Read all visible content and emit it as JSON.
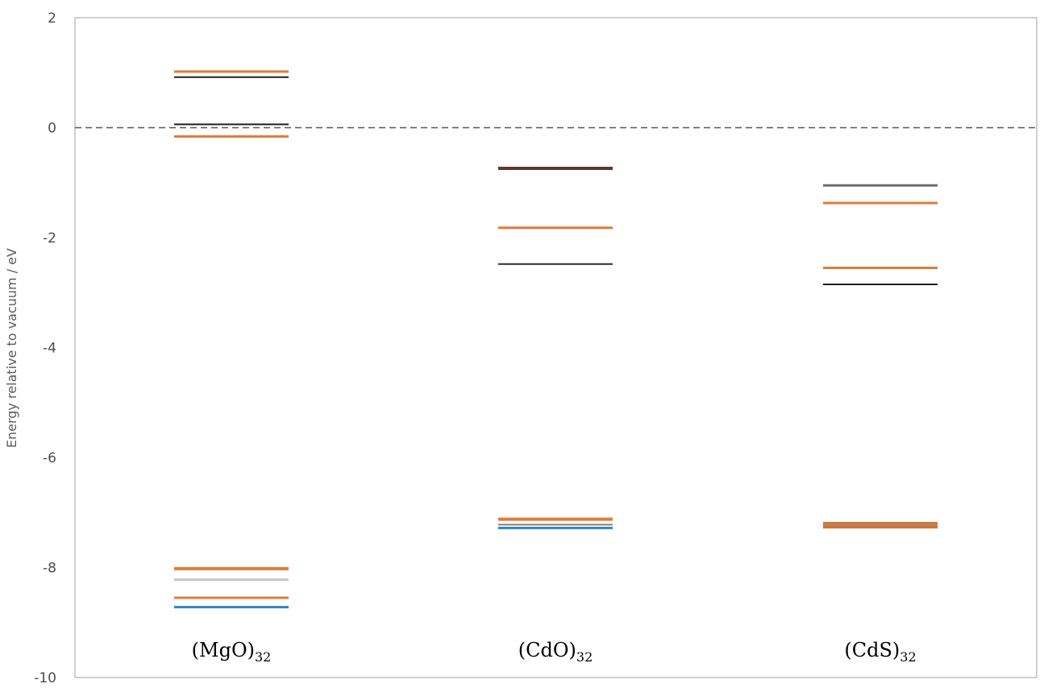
{
  "chart_data": {
    "type": "level-diagram",
    "ylabel": "Energy relative to vacuum / eV",
    "ylim": [
      -10,
      2
    ],
    "yticks": [
      2,
      0,
      -2,
      -4,
      -6,
      -8,
      -10
    ],
    "reference_line": {
      "y": 0,
      "style": "dashed"
    },
    "groups": [
      {
        "label_main": "(MgO)",
        "label_sub": "32",
        "levels": [
          {
            "y": 1.02,
            "color": "#E07B39",
            "weight": 3
          },
          {
            "y": 0.92,
            "color": "#1f1f1f",
            "weight": 2
          },
          {
            "y": 0.06,
            "color": "#1f1f1f",
            "weight": 2
          },
          {
            "y": -0.16,
            "color": "#E07B39",
            "weight": 3
          },
          {
            "y": -8.02,
            "color": "#E07B39",
            "weight": 4
          },
          {
            "y": -8.22,
            "color": "#c8c8c8",
            "weight": 3
          },
          {
            "y": -8.55,
            "color": "#E07B39",
            "weight": 3
          },
          {
            "y": -8.72,
            "color": "#2E86C1",
            "weight": 3
          }
        ]
      },
      {
        "label_main": "(CdO)",
        "label_sub": "32",
        "levels": [
          {
            "y": -0.74,
            "color": "#5a3a2a",
            "weight": 4
          },
          {
            "y": -1.82,
            "color": "#E07B39",
            "weight": 3
          },
          {
            "y": -2.48,
            "color": "#2b2b2b",
            "weight": 2
          },
          {
            "y": -7.12,
            "color": "#E07B39",
            "weight": 4
          },
          {
            "y": -7.22,
            "color": "#9a7a6a",
            "weight": 2
          },
          {
            "y": -7.28,
            "color": "#2E86C1",
            "weight": 3
          }
        ]
      },
      {
        "label_main": "(CdS)",
        "label_sub": "32",
        "levels": [
          {
            "y": -1.05,
            "color": "#6b6b6b",
            "weight": 3
          },
          {
            "y": -1.37,
            "color": "#E07B39",
            "weight": 3
          },
          {
            "y": -2.55,
            "color": "#E07B39",
            "weight": 3
          },
          {
            "y": -2.85,
            "color": "#1f1f1f",
            "weight": 2
          },
          {
            "y": -7.2,
            "color": "#C9773F",
            "weight": 4
          },
          {
            "y": -7.26,
            "color": "#C9773F",
            "weight": 4
          }
        ]
      }
    ],
    "grid": false,
    "legend": "none"
  }
}
